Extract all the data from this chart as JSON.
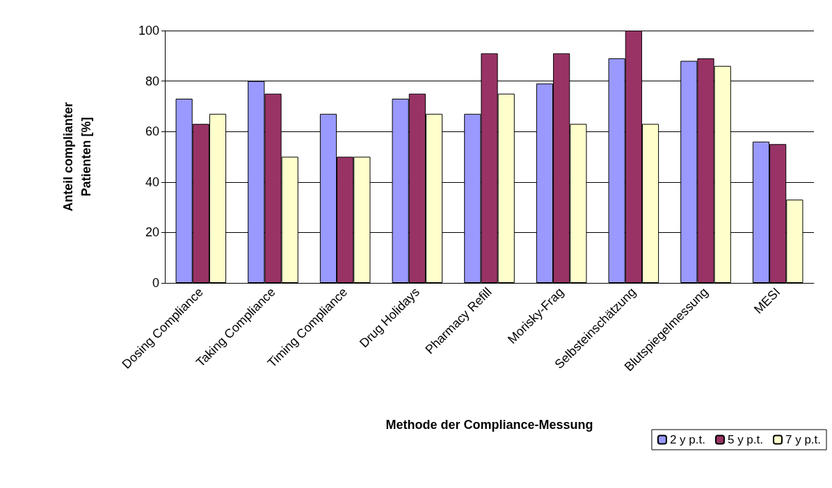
{
  "chart_data": {
    "type": "bar",
    "xlabel": "Methode der Compliance-Messung",
    "ylabel": "Anteil complianter\nPatienten [%]",
    "categories": [
      "Dosing Compliance",
      "Taking Compliance",
      "Timing Compliance",
      "Drug Holidays",
      "Pharmacy Refill",
      "Morisky-Frag",
      "Selbsteinschätzung",
      "Blutspiegelmessung",
      "MESI"
    ],
    "series": [
      {
        "name": "2 y p.t.",
        "color": "#9999ff",
        "values": [
          73,
          80,
          67,
          73,
          67,
          79,
          89,
          88,
          56
        ]
      },
      {
        "name": "5 y p.t.",
        "color": "#993366",
        "values": [
          63,
          75,
          50,
          75,
          91,
          91,
          100,
          89,
          55
        ]
      },
      {
        "name": "7 y p.t.",
        "color": "#ffffcc",
        "values": [
          67,
          50,
          50,
          67,
          75,
          63,
          63,
          86,
          33
        ]
      }
    ],
    "ylim": [
      0,
      100
    ],
    "yticks": [
      0,
      20,
      40,
      60,
      80,
      100
    ],
    "grid": "y",
    "legend": "bottom right"
  }
}
